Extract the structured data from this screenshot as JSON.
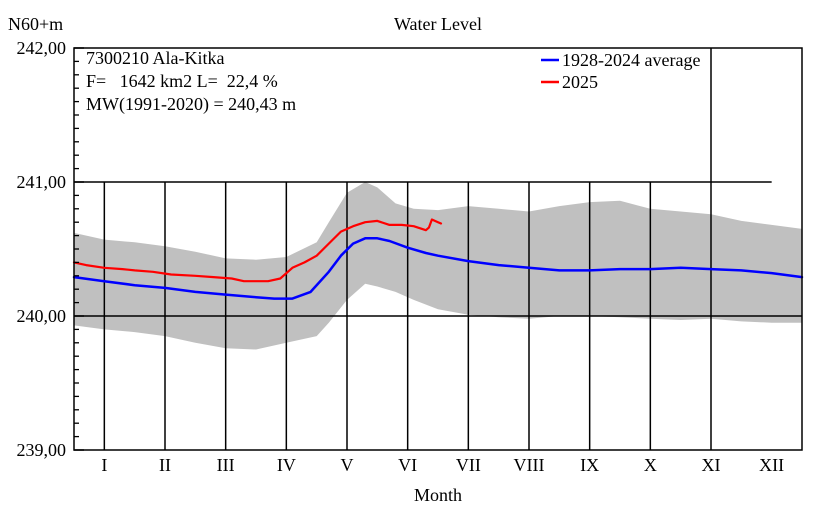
{
  "chart_data": {
    "type": "line",
    "title": "Water Level",
    "ylabel": "N60+m",
    "xlabel": "Month",
    "ylim": [
      239.0,
      242.0
    ],
    "y_ticks": [
      "242,00",
      "241,00",
      "240,00",
      "239,00"
    ],
    "y_tick_values": [
      242.0,
      241.0,
      240.0,
      239.0
    ],
    "months": [
      "I",
      "II",
      "III",
      "IV",
      "V",
      "VI",
      "VII",
      "VIII",
      "IX",
      "X",
      "XI",
      "XII"
    ],
    "grid": "vertical lines at month boundaries, horizontal at 240 and 241 (to mid-December in the upper band)",
    "legend_position": "top-right",
    "info": {
      "station": "7300210 Ala-Kitka",
      "area": "F=   1642 km2 L=  22,4 %",
      "mean": "MW(1991-2020) = 240,43 m"
    },
    "band": {
      "color": "#c0c0c0",
      "x": [
        0,
        0.5,
        1,
        1.5,
        2,
        2.5,
        3,
        3.5,
        4,
        4.2,
        4.5,
        4.8,
        5,
        5.3,
        5.6,
        6,
        6.5,
        7,
        7.5,
        8,
        8.5,
        9,
        9.5,
        10,
        10.5,
        11,
        11.5,
        12
      ],
      "upper": [
        240.62,
        240.57,
        240.55,
        240.52,
        240.48,
        240.43,
        240.42,
        240.44,
        240.55,
        240.7,
        240.92,
        241.0,
        240.96,
        240.84,
        240.8,
        240.79,
        240.82,
        240.8,
        240.78,
        240.82,
        240.85,
        240.86,
        240.8,
        240.78,
        240.76,
        240.71,
        240.68,
        240.65
      ],
      "lower": [
        239.93,
        239.9,
        239.88,
        239.85,
        239.8,
        239.76,
        239.75,
        239.8,
        239.85,
        239.95,
        240.12,
        240.24,
        240.22,
        240.18,
        240.12,
        240.05,
        240.01,
        239.99,
        239.98,
        240.0,
        240.0,
        239.99,
        239.98,
        239.97,
        239.98,
        239.96,
        239.95,
        239.95
      ]
    },
    "series": [
      {
        "name": "1928-2024 average",
        "color": "#0000ff",
        "x": [
          0,
          0.5,
          1,
          1.5,
          2,
          2.5,
          3,
          3.3,
          3.6,
          3.9,
          4.2,
          4.4,
          4.6,
          4.8,
          5,
          5.2,
          5.5,
          5.8,
          6,
          6.5,
          7,
          7.5,
          8,
          8.5,
          9,
          9.5,
          10,
          10.5,
          11,
          11.5,
          12
        ],
        "values": [
          240.29,
          240.26,
          240.23,
          240.21,
          240.18,
          240.16,
          240.14,
          240.13,
          240.13,
          240.18,
          240.33,
          240.45,
          240.54,
          240.58,
          240.58,
          240.56,
          240.51,
          240.47,
          240.45,
          240.41,
          240.38,
          240.36,
          240.34,
          240.34,
          240.35,
          240.35,
          240.36,
          240.35,
          240.34,
          240.32,
          240.29
        ]
      },
      {
        "name": "2025",
        "color": "#ff0000",
        "x": [
          0,
          0.2,
          0.5,
          0.8,
          1,
          1.3,
          1.6,
          2,
          2.3,
          2.6,
          2.8,
          3,
          3.2,
          3.4,
          3.6,
          3.8,
          4,
          4.2,
          4.4,
          4.6,
          4.8,
          5,
          5.2,
          5.4,
          5.6,
          5.8,
          5.85,
          5.9,
          6,
          6.05
        ],
        "values": [
          240.4,
          240.38,
          240.36,
          240.35,
          240.34,
          240.33,
          240.31,
          240.3,
          240.29,
          240.28,
          240.26,
          240.26,
          240.26,
          240.28,
          240.36,
          240.4,
          240.45,
          240.54,
          240.63,
          240.67,
          240.7,
          240.71,
          240.68,
          240.68,
          240.67,
          240.64,
          240.66,
          240.72,
          240.7,
          240.69
        ]
      }
    ]
  }
}
